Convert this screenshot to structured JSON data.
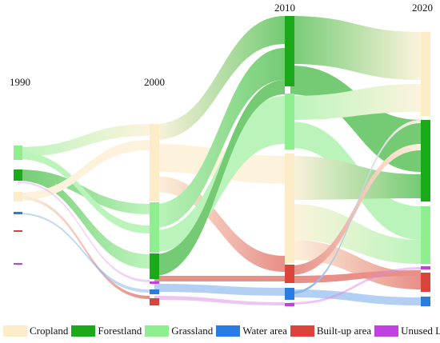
{
  "years": [
    "1990",
    "2000",
    "2010",
    "2020"
  ],
  "categories": [
    {
      "key": "cropland",
      "label": "Cropland",
      "color": "#fcecc8"
    },
    {
      "key": "forestland",
      "label": "Forestland",
      "color": "#19a919"
    },
    {
      "key": "grassland",
      "label": "Grassland",
      "color": "#8fee8f"
    },
    {
      "key": "water",
      "label": "Water area",
      "color": "#2a7de0"
    },
    {
      "key": "builtup",
      "label": "Built-up area",
      "color": "#d9453a"
    },
    {
      "key": "unused",
      "label": "Unused Land",
      "color": "#c040e0"
    }
  ]
}
